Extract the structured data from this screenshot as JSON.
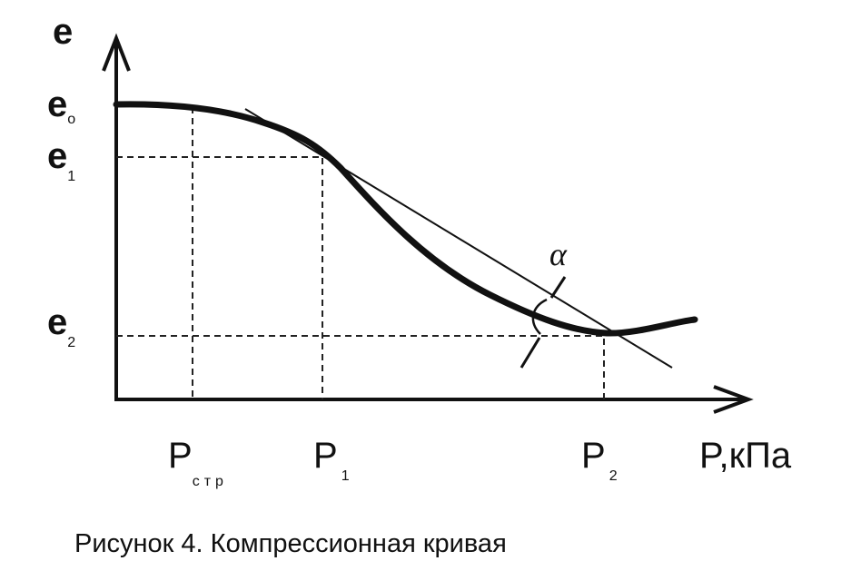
{
  "axes": {
    "y_label": "e",
    "x_label": "P,кПа"
  },
  "y_marks": [
    {
      "main": "e",
      "sub": "o"
    },
    {
      "main": "e",
      "sub": "1"
    },
    {
      "main": "e",
      "sub": "2"
    }
  ],
  "x_marks": [
    {
      "main": "P",
      "sub": "стр"
    },
    {
      "main": "P",
      "sub": "1"
    },
    {
      "main": "P",
      "sub": "2"
    }
  ],
  "angle_label": "α",
  "caption": "Рисунок 4. Компрессионная кривая"
}
